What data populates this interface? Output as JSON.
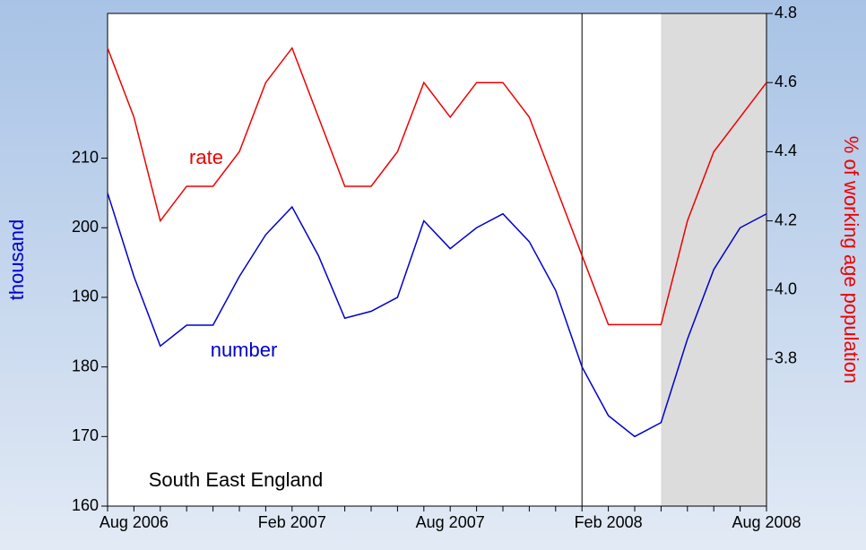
{
  "chart_data": {
    "type": "line",
    "annotations": [
      "South East England"
    ],
    "y_label": "thousand",
    "y2_label": "% of working age population",
    "categories": [
      null,
      "Aug 2006",
      null,
      null,
      null,
      null,
      null,
      "Feb 2007",
      null,
      null,
      null,
      null,
      null,
      "Aug 2007",
      null,
      null,
      null,
      null,
      null,
      "Feb 2008",
      null,
      null,
      null,
      null,
      null,
      "Aug 2008"
    ],
    "series": [
      {
        "name": "number",
        "color": "#0000cc",
        "axis": "y",
        "values": [
          205,
          193,
          183,
          186,
          186,
          193,
          199,
          203,
          196,
          187,
          188,
          190,
          201,
          197,
          200,
          202,
          198,
          191,
          180,
          173,
          170,
          172,
          184,
          194,
          200,
          202
        ]
      },
      {
        "name": "rate",
        "color": "#ee0000",
        "axis": "y2",
        "values": [
          4.7,
          4.5,
          4.2,
          4.3,
          4.3,
          4.4,
          4.6,
          4.7,
          4.5,
          4.3,
          4.3,
          4.4,
          4.6,
          4.5,
          4.6,
          4.6,
          4.5,
          4.3,
          4.1,
          3.9,
          3.9,
          3.9,
          4.2,
          4.4,
          4.5,
          4.6
        ]
      }
    ],
    "ylim": [
      160,
      230.8
    ],
    "yticks": [
      160,
      170,
      180,
      190,
      200,
      210
    ],
    "y2lim": [
      3.375,
      4.8
    ],
    "y2ticks": [
      3.8,
      {
        "value": 4,
        "label": "4.0"
      },
      4.2,
      4.4,
      4.6,
      4.8
    ]
  }
}
